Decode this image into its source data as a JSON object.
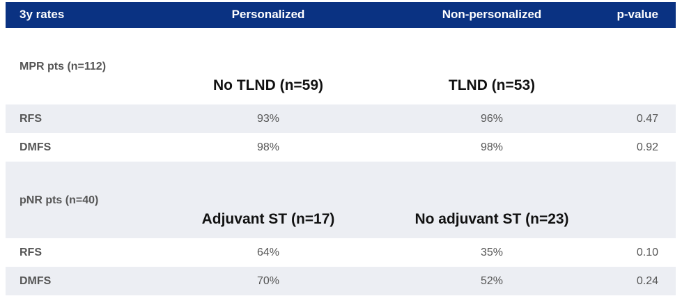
{
  "table": {
    "header": [
      "3y rates",
      "Personalized",
      "Non-personalized",
      "p-value"
    ],
    "sections": [
      {
        "label": "MPR pts (n=112)",
        "groups": [
          "No TLND (n=59)",
          "TLND (n=53)"
        ],
        "rows": [
          [
            "RFS",
            "93%",
            "96%",
            "0.47"
          ],
          [
            "DMFS",
            "98%",
            "98%",
            "0.92"
          ]
        ]
      },
      {
        "label": "pNR pts (n=40)",
        "groups": [
          "Adjuvant ST (n=17)",
          "No adjuvant ST (n=23)"
        ],
        "rows": [
          [
            "RFS",
            "64%",
            "35%",
            "0.10"
          ],
          [
            "DMFS",
            "70%",
            "52%",
            "0.24"
          ]
        ]
      }
    ]
  }
}
